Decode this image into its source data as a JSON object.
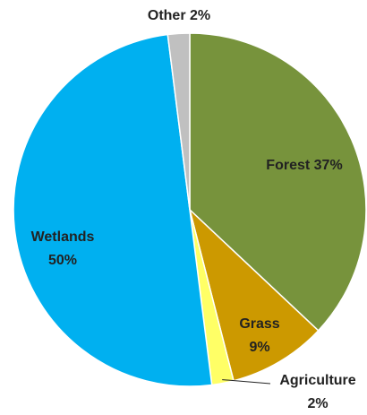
{
  "chart_data": {
    "type": "pie",
    "categories": [
      "Forest",
      "Grass",
      "Agriculture",
      "Wetlands",
      "Other"
    ],
    "values": [
      37,
      9,
      2,
      50,
      2
    ],
    "value_labels": [
      "37%",
      "9%",
      "2%",
      "50%",
      "2%"
    ],
    "colors": [
      "#77933c",
      "#cc9900",
      "#ffff66",
      "#00b0f0",
      "#c0c0c0"
    ]
  }
}
